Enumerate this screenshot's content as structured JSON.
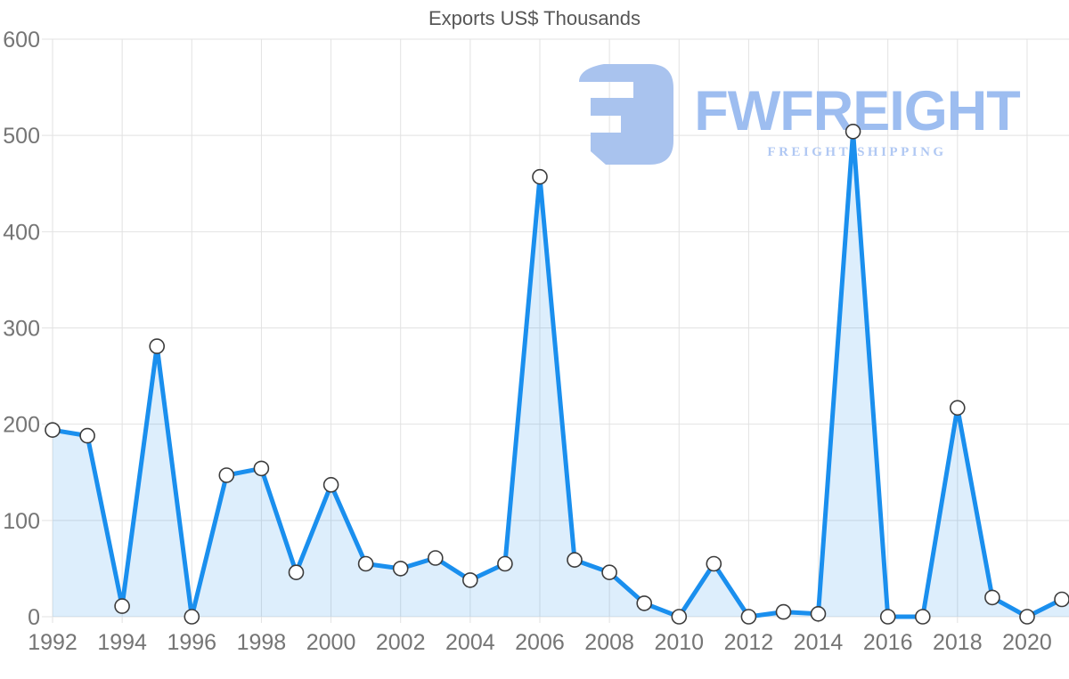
{
  "title": "Exports US$ Thousands",
  "watermark": {
    "brand": "FWFREIGHT",
    "tagline": "FREIGHT SHIPPING",
    "icon_color": "#a9c3ee",
    "brand_color": "#9dbdf0",
    "tagline_color": "#b0c8f3"
  },
  "chart_data": {
    "type": "area",
    "title": "Exports US$ Thousands",
    "x": [
      1992,
      1993,
      1994,
      1995,
      1996,
      1997,
      1998,
      1999,
      2000,
      2001,
      2002,
      2003,
      2004,
      2005,
      2006,
      2007,
      2008,
      2009,
      2010,
      2011,
      2012,
      2013,
      2014,
      2015,
      2016,
      2017,
      2018,
      2019,
      2020,
      2021
    ],
    "series": [
      {
        "name": "Exports US$ Thousands",
        "values": [
          194,
          188,
          11,
          281,
          0,
          147,
          154,
          46,
          137,
          55,
          50,
          61,
          38,
          55,
          457,
          59,
          46,
          14,
          0,
          55,
          0,
          5,
          3,
          504,
          0,
          0,
          217,
          20,
          0,
          18
        ]
      }
    ],
    "xlabel": "",
    "ylabel": "",
    "ylim": [
      0,
      600
    ],
    "y_ticks": [
      0,
      100,
      200,
      300,
      400,
      500,
      600
    ],
    "x_tick_labels": [
      "1992",
      "1994",
      "1996",
      "1998",
      "2000",
      "2002",
      "2004",
      "2006",
      "2008",
      "2010",
      "2012",
      "2014",
      "2016",
      "2018",
      "2020"
    ],
    "x_tick_interval": 2,
    "grid": true,
    "legend": "none",
    "line_color": "#1a8fee",
    "fill_color": "rgba(26,143,238,0.15)",
    "marker": {
      "fill": "#ffffff",
      "stroke": "#3c3c3c",
      "radius": 8
    },
    "grid_color": "#e2e2e2",
    "tick_label_color": "#757575"
  }
}
